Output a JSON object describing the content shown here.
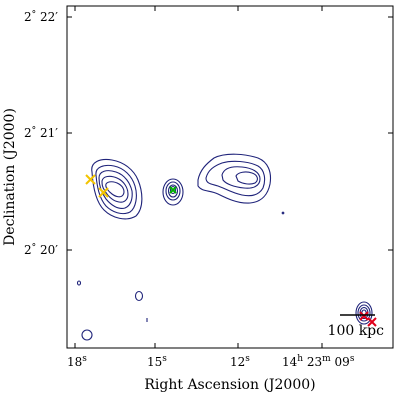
{
  "axes": {
    "xlabel": "Right Ascension (J2000)",
    "ylabel": "Declination (J2000)",
    "x_ticks": [
      "18s",
      "15s",
      "12s",
      "14h 23m 09s"
    ],
    "y_ticks": [
      "2° 22′",
      "2° 21′",
      "2° 20′"
    ]
  },
  "x_tick_parts": [
    {
      "main": "18",
      "sup": "s"
    },
    {
      "main": "15",
      "sup": "s"
    },
    {
      "main": "12",
      "sup": "s"
    },
    {
      "main": "14",
      "sup": "h",
      "main2": " 23",
      "sup2": "m",
      "main3": " 09",
      "sup3": "s"
    }
  ],
  "y_tick_parts": [
    {
      "deg": "2",
      "degsym": "°",
      "min": " 22",
      "minsym": "′"
    },
    {
      "deg": "2",
      "degsym": "°",
      "min": " 21",
      "minsym": "′"
    },
    {
      "deg": "2",
      "degsym": "°",
      "min": " 20",
      "minsym": "′"
    }
  ],
  "scale_bar": {
    "label": "100 kpc"
  },
  "colors": {
    "contours": "#1f237a",
    "yellow_markers": "#f2c400",
    "green_marker": "#00b000",
    "red_markers": "#e0001a",
    "axes": "#000000"
  }
}
